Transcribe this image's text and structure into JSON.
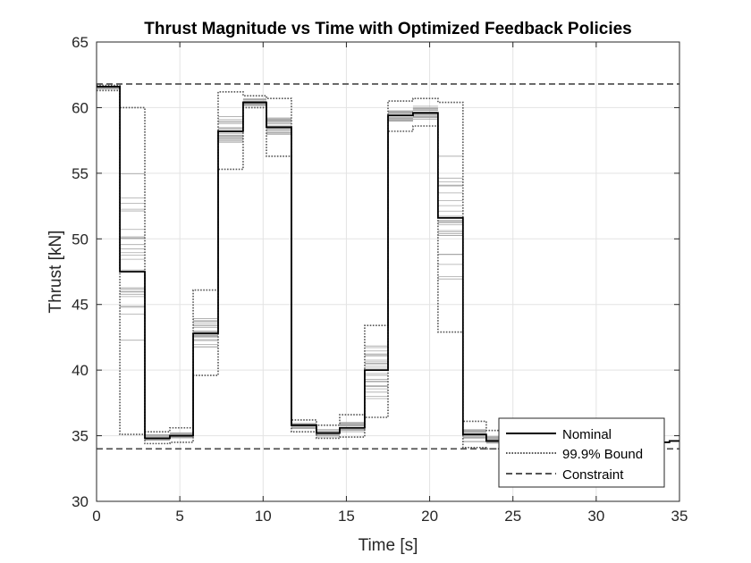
{
  "chart_data": {
    "type": "line",
    "title": "Thrust Magnitude vs Time with Optimized Feedback Policies",
    "xlabel": "Time [s]",
    "ylabel": "Thrust [kN]",
    "xlim": [
      0,
      35
    ],
    "ylim": [
      30,
      65
    ],
    "xticks": [
      0,
      5,
      10,
      15,
      20,
      25,
      30,
      35
    ],
    "yticks": [
      30,
      35,
      40,
      45,
      50,
      55,
      60,
      65
    ],
    "grid": true,
    "legend_position": "bottom-right",
    "legend": [
      "Nominal",
      "99.9% Bound",
      "Constraint"
    ],
    "segments_t": [
      0,
      1.4,
      2.9,
      4.4,
      5.8,
      7.3,
      8.8,
      10.2,
      11.7,
      13.2,
      14.6,
      16.1,
      17.5,
      19.0,
      20.5,
      22.0,
      23.4,
      24.9
    ],
    "nominal": [
      61.6,
      47.5,
      34.8,
      35.0,
      42.8,
      58.2,
      60.4,
      58.5,
      35.8,
      35.2,
      35.6,
      40.0,
      59.4,
      59.6,
      51.6,
      35.1,
      34.6
    ],
    "nominal_tail": {
      "start": 34.5,
      "end": 34.6
    },
    "bound_upper": [
      61.7,
      60.0,
      35.3,
      35.6,
      46.1,
      61.2,
      60.9,
      60.7,
      36.2,
      35.8,
      36.6,
      43.4,
      60.5,
      60.7,
      60.4,
      36.1,
      35.4
    ],
    "bound_lower": [
      61.3,
      35.1,
      34.4,
      34.5,
      39.6,
      55.3,
      60.0,
      56.3,
      35.3,
      34.8,
      34.9,
      36.4,
      58.2,
      58.6,
      42.9,
      34.1,
      34.0
    ],
    "spread_upper": [
      61.6,
      56.0,
      35.1,
      35.3,
      44.0,
      59.5,
      60.7,
      59.3,
      36.0,
      35.5,
      36.2,
      42.5,
      59.9,
      60.2,
      56.5,
      35.7,
      35.0
    ],
    "spread_lower": [
      61.4,
      42.0,
      34.6,
      34.8,
      41.5,
      57.3,
      60.1,
      57.8,
      35.5,
      34.9,
      35.2,
      37.8,
      58.9,
      59.1,
      46.0,
      34.5,
      34.3
    ],
    "constraint_upper": 61.8,
    "constraint_lower": 34.0
  },
  "colors": {
    "nominal": "#000000",
    "bound": "#555555",
    "constraint": "#555555",
    "samples": "#a8a8a8",
    "grid": "#e3e3e3",
    "axes": "#262626"
  }
}
